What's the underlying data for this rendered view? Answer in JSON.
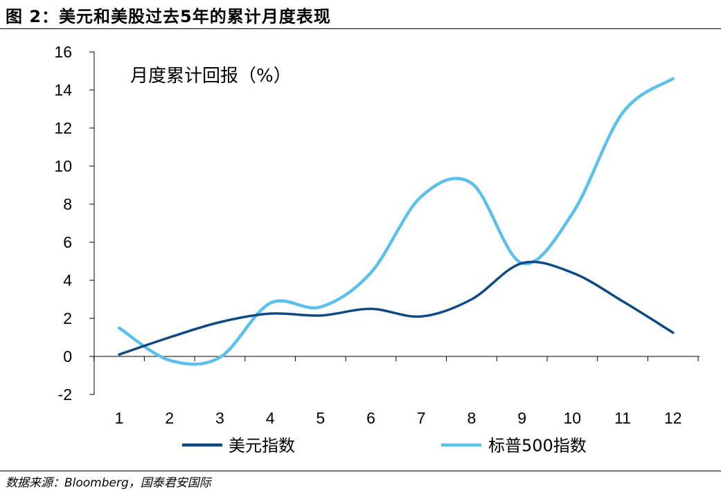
{
  "figure": {
    "title": "图 2：美元和美股过去5年的累计月度表现",
    "source": "数据来源：Bloomberg，国泰君安国际"
  },
  "chart_data": {
    "type": "line",
    "annotation": "月度累计回报（%）",
    "x": [
      1,
      2,
      3,
      4,
      5,
      6,
      7,
      8,
      9,
      10,
      11,
      12
    ],
    "xticks": [
      "1",
      "2",
      "3",
      "4",
      "5",
      "6",
      "7",
      "8",
      "9",
      "10",
      "11",
      "12"
    ],
    "ylim": [
      -2,
      16
    ],
    "yticks": [
      "-2",
      "0",
      "2",
      "4",
      "6",
      "8",
      "10",
      "12",
      "14",
      "16"
    ],
    "yticks_values": [
      -2,
      0,
      2,
      4,
      6,
      8,
      10,
      12,
      14,
      16
    ],
    "grid": false,
    "legend_position": "bottom",
    "series": [
      {
        "name": "美元指数",
        "color": "#0d4a85",
        "values": [
          0.1,
          1.0,
          1.8,
          2.25,
          2.15,
          2.5,
          2.1,
          3.0,
          4.9,
          4.4,
          2.9,
          1.25
        ]
      },
      {
        "name": "标普500指数",
        "color": "#5bc0eb",
        "values": [
          1.5,
          -0.2,
          -0.05,
          2.8,
          2.6,
          4.4,
          8.4,
          9.1,
          4.9,
          7.5,
          12.8,
          14.6
        ]
      }
    ]
  }
}
